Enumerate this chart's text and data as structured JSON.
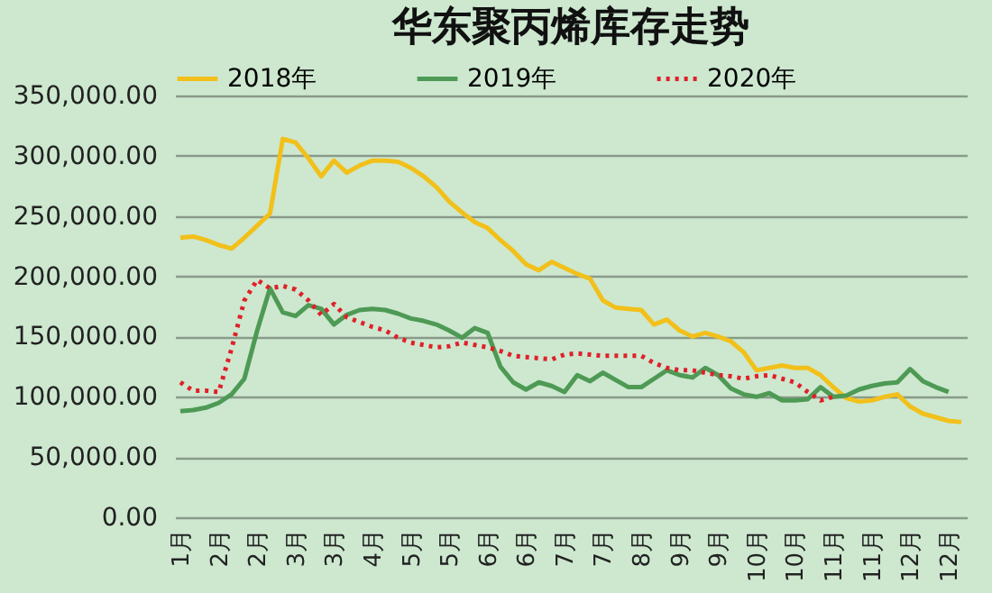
{
  "chart_data": {
    "type": "line",
    "title": "华东聚丙烯库存走势",
    "categories": [
      "1月",
      null,
      null,
      "2月",
      null,
      null,
      "2月",
      null,
      null,
      "3月",
      null,
      null,
      "3月",
      null,
      null,
      "4月",
      null,
      null,
      "5月",
      null,
      null,
      "5月",
      null,
      null,
      "6月",
      null,
      null,
      "6月",
      null,
      null,
      "7月",
      null,
      null,
      "7月",
      null,
      null,
      "8月",
      null,
      null,
      "9月",
      null,
      null,
      "9月",
      null,
      null,
      "10月",
      null,
      null,
      "10月",
      null,
      null,
      "11月",
      null,
      null,
      "11月",
      null,
      null,
      "12月",
      null,
      null,
      "12月",
      null
    ],
    "series": [
      {
        "name": "2018年",
        "color": "#f2c01a",
        "line_style": "solid",
        "values": [
          232000,
          233000,
          230000,
          226000,
          223000,
          232000,
          242000,
          252000,
          314000,
          311000,
          298000,
          283000,
          296000,
          286000,
          292000,
          296000,
          296000,
          295000,
          290000,
          283000,
          274000,
          262000,
          253000,
          245000,
          240000,
          230000,
          221000,
          210000,
          205000,
          212000,
          207000,
          202000,
          198000,
          180000,
          174000,
          173000,
          172000,
          160000,
          164000,
          155000,
          150000,
          153000,
          150000,
          146000,
          137000,
          122000,
          124000,
          126000,
          124000,
          124000,
          118000,
          108000,
          99000,
          96000,
          97000,
          100000,
          102000,
          92000,
          86000,
          83000,
          80000,
          79000
        ]
      },
      {
        "name": "2019年",
        "color": "#4e9a55",
        "line_style": "solid",
        "values": [
          88000,
          89000,
          91000,
          95000,
          102000,
          115000,
          155000,
          190000,
          170000,
          167000,
          176000,
          173000,
          160000,
          168000,
          172000,
          173000,
          172000,
          169000,
          165000,
          163000,
          160000,
          155000,
          149000,
          157000,
          153000,
          125000,
          112000,
          106000,
          112000,
          109000,
          104000,
          118000,
          113000,
          120000,
          114000,
          108000,
          108000,
          115000,
          122000,
          118000,
          116000,
          124000,
          118000,
          107000,
          102000,
          100000,
          103000,
          97000,
          97000,
          98000,
          108000,
          100000,
          101000,
          106000,
          109000,
          111000,
          112000,
          123000,
          113000,
          108000,
          104000,
          null
        ]
      },
      {
        "name": "2020年",
        "color": "#e0202a",
        "line_style": "dotted",
        "values": [
          112000,
          105000,
          105000,
          104000,
          140000,
          180000,
          197000,
          190000,
          192000,
          189000,
          180000,
          168000,
          177000,
          166000,
          162000,
          158000,
          155000,
          149000,
          145000,
          143000,
          141000,
          142000,
          145000,
          143000,
          141000,
          138000,
          134000,
          133000,
          132000,
          131000,
          135000,
          136000,
          135000,
          134000,
          134000,
          134000,
          134000,
          128000,
          124000,
          122000,
          122000,
          120000,
          118000,
          117000,
          115000,
          117000,
          118000,
          115000,
          112000,
          104000,
          97000,
          100000,
          null,
          null,
          null,
          null,
          null,
          null,
          null,
          null,
          null,
          null
        ]
      }
    ],
    "ylim": [
      0,
      350000
    ],
    "yticks": [
      {
        "value": 0,
        "label": "0.00"
      },
      {
        "value": 50000,
        "label": "50,000.00"
      },
      {
        "value": 100000,
        "label": "100,000.00"
      },
      {
        "value": 150000,
        "label": "150,000.00"
      },
      {
        "value": 200000,
        "label": "200,000.00"
      },
      {
        "value": 250000,
        "label": "250,000.00"
      },
      {
        "value": 300000,
        "label": "300,000.00"
      },
      {
        "value": 350000,
        "label": "350,000.00"
      }
    ],
    "grid": "y",
    "legend": "top",
    "marker": "none"
  }
}
